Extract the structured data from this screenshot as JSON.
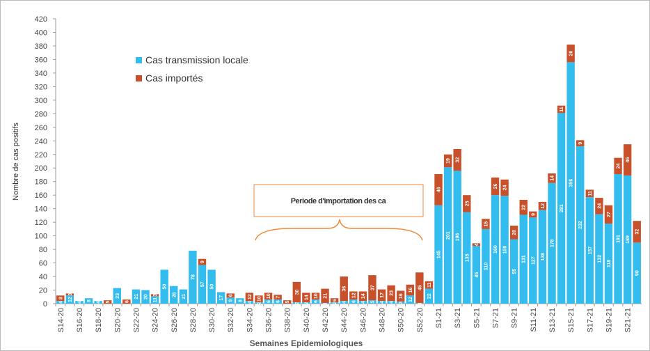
{
  "chart_data": {
    "type": "stacked-bar",
    "y_label": "Nombre de cas positifs",
    "x_label": "Semaines Epidemiologiques",
    "annotation": "Periode d'importation des ca",
    "categories": [
      "S14-20",
      null,
      "S16-20",
      null,
      "S18-20",
      null,
      "S20-20",
      null,
      "S22-20",
      null,
      "S24-20",
      null,
      "S26-20",
      null,
      "S28-20",
      null,
      "S30-20",
      null,
      "S32-20",
      null,
      "S34-20",
      null,
      "S36-20",
      null,
      "S38-20",
      null,
      "S40-20",
      null,
      "S42-20",
      null,
      "S44-20",
      null,
      "S46-20",
      null,
      "S48-20",
      null,
      "S50-20",
      null,
      "S52-20",
      null,
      "S1-21",
      null,
      "S3-21",
      null,
      "S5-21",
      null,
      "S7-21",
      null,
      "S9-21",
      null,
      "S11-21",
      null,
      "S13-21",
      null,
      "S15-21",
      null,
      "S17-21",
      null,
      "S19-21",
      null,
      "S21-21",
      null
    ],
    "series": [
      {
        "name": "Cas transmission locale",
        "color": "#33bdef",
        "values": [
          4,
          12,
          4,
          8,
          4,
          0,
          23,
          0,
          21,
          20,
          11,
          50,
          26,
          21,
          78,
          57,
          50,
          17,
          9,
          8,
          4,
          2,
          6,
          6,
          0,
          2,
          2,
          6,
          1,
          2,
          4,
          6,
          4,
          5,
          4,
          4,
          3,
          12,
          1,
          22,
          145,
          201,
          196,
          135,
          85,
          110,
          160,
          159,
          95,
          131,
          127,
          138,
          178,
          281,
          356,
          232,
          157,
          132,
          118,
          191,
          189,
          90
        ]
      },
      {
        "name": "Cas importés",
        "color": "#c8502a",
        "values": [
          8,
          3,
          0,
          0,
          0,
          5,
          0,
          6,
          0,
          0,
          3,
          0,
          0,
          0,
          0,
          9,
          0,
          0,
          6,
          0,
          12,
          10,
          10,
          7,
          5,
          30,
          14,
          10,
          21,
          6,
          36,
          12,
          14,
          37,
          17,
          23,
          16,
          16,
          45,
          11,
          46,
          19,
          32,
          25,
          4,
          15,
          26,
          24,
          20,
          22,
          9,
          12,
          14,
          11,
          26,
          9,
          11,
          24,
          27,
          24,
          46,
          32
        ]
      }
    ],
    "ylim": [
      0,
      420
    ],
    "yticks": [
      0,
      20,
      40,
      60,
      80,
      100,
      120,
      140,
      160,
      180,
      200,
      220,
      240,
      260,
      280,
      300,
      320,
      340,
      360,
      380,
      400,
      420
    ],
    "legend": "upper-left"
  }
}
